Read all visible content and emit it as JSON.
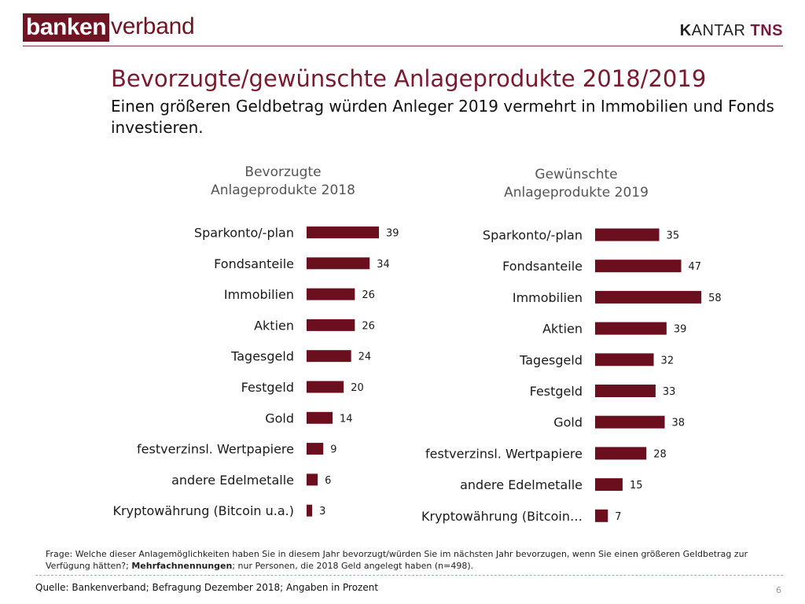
{
  "header": {
    "logo_left_box": "banken",
    "logo_left_rest": "verband",
    "logo_right_k": "K",
    "logo_right_antar": "ANTAR ",
    "logo_right_tns": "TNS"
  },
  "title": "Bevorzugte/gewünschte Anlageprodukte 2018/2019",
  "subtitle": "Einen größeren Geldbetrag würden Anleger 2019 vermehrt in Immobilien und Fonds investieren.",
  "chart_data": [
    {
      "type": "bar",
      "orientation": "horizontal",
      "title_line1": "Bevorzugte",
      "title_line2": "Anlageprodukte 2018",
      "categories": [
        "Sparkonto/-plan",
        "Fondsanteile",
        "Immobilien",
        "Aktien",
        "Tagesgeld",
        "Festgeld",
        "Gold",
        "festverzinsl. Wertpapiere",
        "andere Edelmetalle",
        "Kryptowährung (Bitcoin u.a.)"
      ],
      "values": [
        39,
        34,
        26,
        26,
        24,
        20,
        14,
        9,
        6,
        3
      ],
      "bar_color": "#6b0f1e",
      "data_labels": true
    },
    {
      "type": "bar",
      "orientation": "horizontal",
      "title_line1": "Gewünschte",
      "title_line2": "Anlageprodukte 2019",
      "categories": [
        "Sparkonto/-plan",
        "Fondsanteile",
        "Immobilien",
        "Aktien",
        "Tagesgeld",
        "Festgeld",
        "Gold",
        "festverzinsl. Wertpapiere",
        "andere Edelmetalle",
        "Kryptowährung (Bitcoin…"
      ],
      "values": [
        35,
        47,
        58,
        39,
        32,
        33,
        38,
        28,
        15,
        7
      ],
      "bar_color": "#6b0f1e",
      "data_labels": true
    }
  ],
  "footnote": {
    "text1": "Frage: Welche dieser Anlagemöglichkeiten haben Sie in diesem Jahr bevorzugt/würden Sie im nächsten Jahr bevorzugen, wenn Sie einen größeren Geldbetrag zur Verfügung hätten?; ",
    "bold": "Mehrfachnennungen",
    "text2": "; nur Personen, die 2018 Geld angelegt haben (n=498)."
  },
  "source": "Quelle: Bankenverband; Befragung Dezember 2018; Angaben in Prozent",
  "page_number": "6"
}
